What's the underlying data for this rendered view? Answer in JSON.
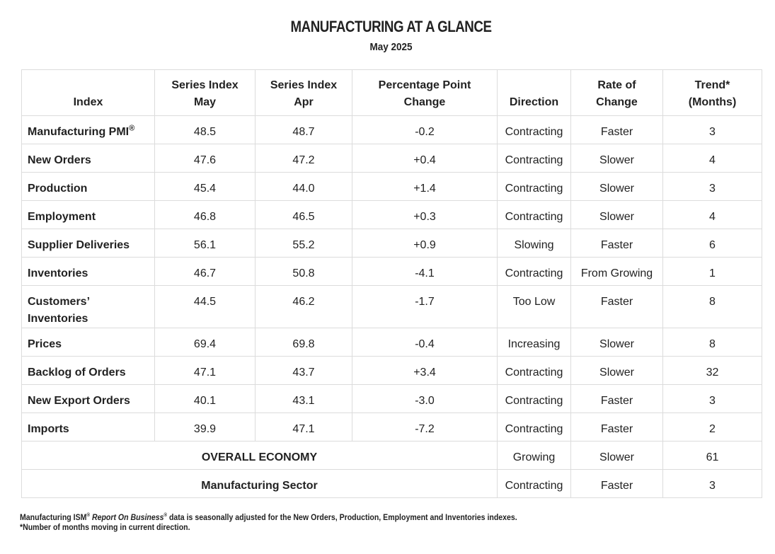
{
  "header": {
    "title": "MANUFACTURING AT A GLANCE",
    "subtitle": "May 2025"
  },
  "table": {
    "columns": [
      [
        "Index"
      ],
      [
        "Series Index",
        "May"
      ],
      [
        "Series Index",
        "Apr"
      ],
      [
        "Percentage Point",
        "Change"
      ],
      [
        "Direction"
      ],
      [
        "Rate of",
        "Change"
      ],
      [
        "Trend*",
        "(Months)"
      ]
    ],
    "rows": [
      {
        "index": [
          "Manufacturing PMI"
        ],
        "sup": "®",
        "may": "48.5",
        "apr": "48.7",
        "change": "-0.2",
        "direction": "Contracting",
        "rate": "Faster",
        "trend": "3"
      },
      {
        "index": [
          "New Orders"
        ],
        "may": "47.6",
        "apr": "47.2",
        "change": "+0.4",
        "direction": "Contracting",
        "rate": "Slower",
        "trend": "4"
      },
      {
        "index": [
          "Production"
        ],
        "may": "45.4",
        "apr": "44.0",
        "change": "+1.4",
        "direction": "Contracting",
        "rate": "Slower",
        "trend": "3"
      },
      {
        "index": [
          "Employment"
        ],
        "may": "46.8",
        "apr": "46.5",
        "change": "+0.3",
        "direction": "Contracting",
        "rate": "Slower",
        "trend": "4"
      },
      {
        "index": [
          "Supplier Deliveries"
        ],
        "may": "56.1",
        "apr": "55.2",
        "change": "+0.9",
        "direction": "Slowing",
        "rate": "Faster",
        "trend": "6"
      },
      {
        "index": [
          "Inventories"
        ],
        "may": "46.7",
        "apr": "50.8",
        "change": "-4.1",
        "direction": "Contracting",
        "rate": "From Growing",
        "trend": "1"
      },
      {
        "index": [
          "Customers’",
          "Inventories"
        ],
        "may": "44.5",
        "apr": "46.2",
        "change": "-1.7",
        "direction": "Too Low",
        "rate": "Faster",
        "trend": "8"
      },
      {
        "index": [
          "Prices"
        ],
        "may": "69.4",
        "apr": "69.8",
        "change": "-0.4",
        "direction": "Increasing",
        "rate": "Slower",
        "trend": "8"
      },
      {
        "index": [
          "Backlog of Orders"
        ],
        "may": "47.1",
        "apr": "43.7",
        "change": "+3.4",
        "direction": "Contracting",
        "rate": "Slower",
        "trend": "32"
      },
      {
        "index": [
          "New Export Orders"
        ],
        "may": "40.1",
        "apr": "43.1",
        "change": "-3.0",
        "direction": "Contracting",
        "rate": "Faster",
        "trend": "3"
      },
      {
        "index": [
          "Imports"
        ],
        "may": "39.9",
        "apr": "47.1",
        "change": "-7.2",
        "direction": "Contracting",
        "rate": "Faster",
        "trend": "2"
      }
    ],
    "summary": [
      {
        "label": "OVERALL ECONOMY",
        "direction": "Growing",
        "rate": "Slower",
        "trend": "61"
      },
      {
        "label": "Manufacturing Sector",
        "direction": "Contracting",
        "rate": "Faster",
        "trend": "3"
      }
    ]
  },
  "footnote": {
    "line1": [
      "Manufacturing ISM",
      "®",
      "Report On Business",
      "®",
      "data is seasonally adjusted for the New Orders, Production, Employment and Inventories indexes."
    ],
    "line2": "*Number of months moving in current direction."
  }
}
